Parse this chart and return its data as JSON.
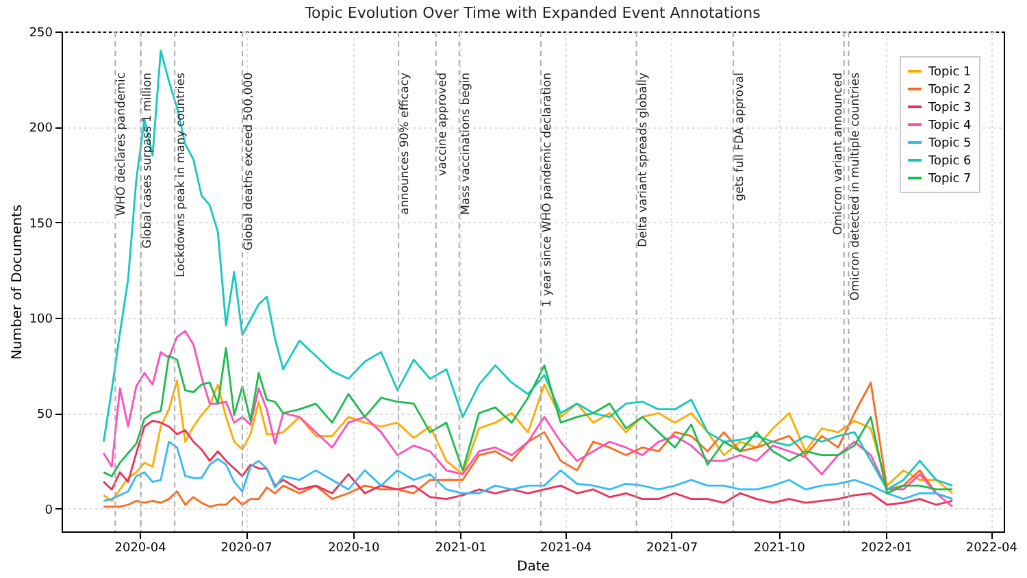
{
  "chart_data": {
    "type": "line",
    "title": "Topic Evolution Over Time with Expanded Event Annotations",
    "xlabel": "Date",
    "ylabel": "Number of Documents",
    "x": [
      "2020-03-01",
      "2020-03-08",
      "2020-03-15",
      "2020-03-22",
      "2020-03-29",
      "2020-04-05",
      "2020-04-12",
      "2020-04-19",
      "2020-04-26",
      "2020-05-03",
      "2020-05-10",
      "2020-05-17",
      "2020-05-24",
      "2020-05-31",
      "2020-06-07",
      "2020-06-14",
      "2020-06-21",
      "2020-06-28",
      "2020-07-05",
      "2020-07-12",
      "2020-07-19",
      "2020-07-26",
      "2020-08-02",
      "2020-08-16",
      "2020-08-30",
      "2020-09-13",
      "2020-09-27",
      "2020-10-11",
      "2020-10-25",
      "2020-11-08",
      "2020-11-22",
      "2020-12-06",
      "2020-12-20",
      "2021-01-03",
      "2021-01-17",
      "2021-01-31",
      "2021-02-14",
      "2021-02-28",
      "2021-03-14",
      "2021-03-28",
      "2021-04-11",
      "2021-04-25",
      "2021-05-09",
      "2021-05-23",
      "2021-06-06",
      "2021-06-20",
      "2021-07-04",
      "2021-07-18",
      "2021-08-01",
      "2021-08-15",
      "2021-08-29",
      "2021-09-12",
      "2021-09-26",
      "2021-10-10",
      "2021-10-24",
      "2021-11-07",
      "2021-11-21",
      "2021-12-05",
      "2021-12-19",
      "2022-01-02",
      "2022-01-16",
      "2022-01-30",
      "2022-02-13",
      "2022-02-27"
    ],
    "series": [
      {
        "name": "Topic 1",
        "color": "#ffaa00",
        "values": [
          7,
          4,
          10,
          16,
          19,
          24,
          22,
          43,
          52,
          67,
          35,
          43,
          49,
          54,
          65,
          48,
          35,
          31,
          39,
          56,
          39,
          39,
          40,
          48,
          38,
          38,
          48,
          45,
          43,
          45,
          37,
          43,
          25,
          18,
          42,
          45,
          50,
          40,
          65,
          48,
          55,
          45,
          50,
          40,
          48,
          50,
          45,
          50,
          40,
          28,
          35,
          32,
          42,
          50,
          30,
          42,
          40,
          46,
          42,
          12,
          20,
          15,
          15,
          8
        ]
      },
      {
        "name": "Topic 2",
        "color": "#fb6a1e",
        "values": [
          1,
          1,
          1,
          2,
          4,
          3,
          4,
          3,
          5,
          9,
          2,
          6,
          3,
          1,
          2,
          2,
          6,
          2,
          5,
          5,
          11,
          8,
          12,
          8,
          12,
          5,
          8,
          12,
          10,
          10,
          8,
          15,
          15,
          15,
          28,
          30,
          25,
          35,
          40,
          25,
          20,
          35,
          32,
          28,
          32,
          30,
          40,
          38,
          30,
          40,
          30,
          32,
          35,
          38,
          28,
          38,
          32,
          50,
          66,
          10,
          12,
          20,
          8,
          5
        ]
      },
      {
        "name": "Topic 3",
        "color": "#ef2f55",
        "values": [
          14,
          10,
          19,
          14,
          29,
          43,
          46,
          45,
          43,
          39,
          41,
          35,
          31,
          25,
          30,
          25,
          21,
          17,
          23,
          21,
          21,
          12,
          15,
          10,
          12,
          8,
          18,
          8,
          12,
          10,
          12,
          6,
          5,
          7,
          10,
          8,
          10,
          8,
          10,
          12,
          8,
          10,
          6,
          8,
          5,
          5,
          8,
          5,
          5,
          3,
          8,
          5,
          3,
          5,
          3,
          4,
          5,
          7,
          8,
          2,
          3,
          5,
          2,
          4
        ]
      },
      {
        "name": "Topic 4",
        "color": "#ff4dba",
        "values": [
          29,
          22,
          63,
          43,
          64,
          71,
          65,
          82,
          79,
          90,
          93,
          86,
          69,
          55,
          55,
          56,
          45,
          48,
          44,
          63,
          52,
          34,
          50,
          48,
          40,
          32,
          45,
          48,
          40,
          28,
          33,
          30,
          20,
          18,
          30,
          32,
          28,
          35,
          48,
          35,
          25,
          30,
          35,
          32,
          28,
          35,
          38,
          33,
          25,
          25,
          28,
          25,
          33,
          30,
          27,
          18,
          28,
          35,
          28,
          10,
          10,
          18,
          8,
          1
        ]
      },
      {
        "name": "Topic 5",
        "color": "#33bbf5",
        "values": [
          4,
          5,
          7,
          9,
          17,
          19,
          14,
          15,
          35,
          32,
          17,
          16,
          16,
          23,
          26,
          23,
          14,
          9,
          22,
          25,
          21,
          11,
          17,
          15,
          20,
          15,
          10,
          20,
          12,
          20,
          15,
          18,
          10,
          8,
          8,
          12,
          10,
          12,
          12,
          20,
          13,
          12,
          10,
          13,
          12,
          10,
          12,
          15,
          12,
          12,
          10,
          10,
          12,
          15,
          10,
          12,
          13,
          15,
          12,
          8,
          5,
          8,
          8,
          5
        ]
      },
      {
        "name": "Topic 6",
        "color": "#12c9c1",
        "values": [
          35,
          62,
          92,
          120,
          172,
          204,
          185,
          240,
          224,
          210,
          191,
          183,
          164,
          159,
          145,
          96,
          124,
          91,
          99,
          107,
          111,
          89,
          73,
          88,
          80,
          72,
          68,
          77,
          82,
          62,
          78,
          68,
          73,
          48,
          65,
          75,
          66,
          60,
          70,
          50,
          55,
          50,
          48,
          55,
          56,
          52,
          52,
          57,
          40,
          35,
          36,
          38,
          35,
          33,
          38,
          35,
          38,
          40,
          25,
          10,
          15,
          25,
          15,
          12
        ]
      },
      {
        "name": "Topic 7",
        "color": "#1abc4e",
        "values": [
          19,
          17,
          24,
          29,
          34,
          47,
          50,
          51,
          80,
          78,
          62,
          61,
          65,
          66,
          55,
          84,
          49,
          64,
          46,
          71,
          57,
          56,
          50,
          52,
          55,
          45,
          60,
          48,
          58,
          56,
          55,
          40,
          45,
          20,
          50,
          53,
          45,
          58,
          75,
          45,
          48,
          50,
          55,
          42,
          48,
          40,
          32,
          44,
          23,
          35,
          30,
          40,
          30,
          25,
          30,
          28,
          28,
          33,
          48,
          8,
          12,
          12,
          10,
          10
        ]
      }
    ],
    "ref_lines": [
      {
        "axis": "x",
        "value": "2020-03-11",
        "label": "WHO declares pandemic"
      },
      {
        "axis": "x",
        "value": "2020-04-02",
        "label": "Global cases surpass 1 million"
      },
      {
        "axis": "x",
        "value": "2020-05-01",
        "label": "Lockdowns peak in many countries"
      },
      {
        "axis": "x",
        "value": "2020-06-28",
        "label": "Global deaths exceed 500,000"
      },
      {
        "axis": "x",
        "value": "2020-11-09",
        "label": "announces 90% efficacy"
      },
      {
        "axis": "x",
        "value": "2020-12-11",
        "label": "vaccine approved"
      },
      {
        "axis": "x",
        "value": "2020-12-31",
        "label": "Mass vaccinations begin"
      },
      {
        "axis": "x",
        "value": "2021-03-11",
        "label": "1 year since WHO pandemic declaration"
      },
      {
        "axis": "x",
        "value": "2021-06-01",
        "label": "Delta variant spreads globally"
      },
      {
        "axis": "x",
        "value": "2021-08-23",
        "label": "gets full FDA approval"
      },
      {
        "axis": "x",
        "value": "2021-11-26",
        "label": "Omicron variant announced"
      },
      {
        "axis": "x",
        "value": "2021-11-30",
        "label": "Omicron detected in multiple countries"
      }
    ],
    "xlim": [
      "2020-01-25",
      "2022-04-12"
    ],
    "xticks": [
      "2020-04",
      "2020-07",
      "2020-10",
      "2021-01",
      "2021-04",
      "2021-07",
      "2021-10",
      "2022-01",
      "2022-04"
    ],
    "ylim": [
      -12,
      250
    ],
    "yticks": [
      0,
      50,
      100,
      150,
      200,
      250
    ],
    "grid": true,
    "legend": "top right",
    "line_style": "solid"
  }
}
